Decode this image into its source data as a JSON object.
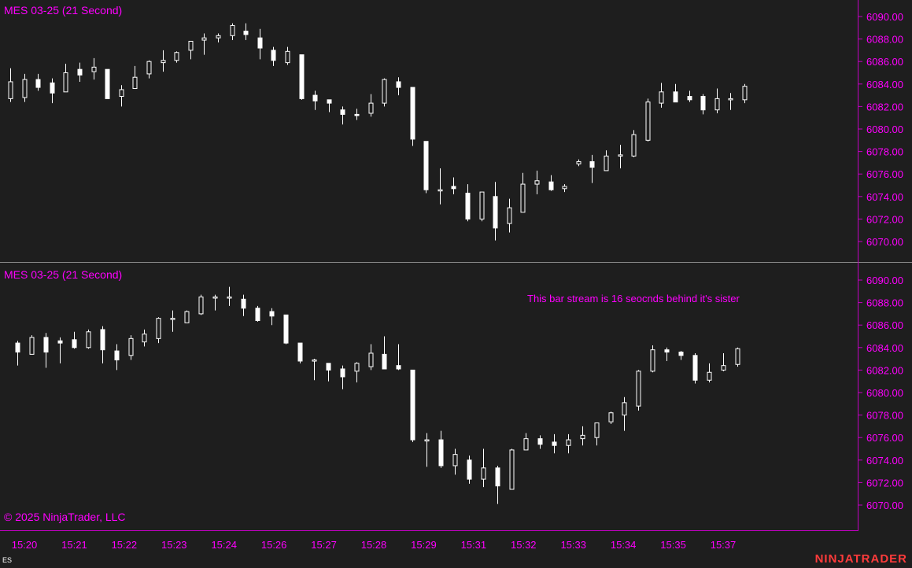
{
  "top_panel": {
    "title": "MES 03-25 (21 Second)"
  },
  "bottom_panel": {
    "title": "MES 03-25 (21 Second)",
    "annotation": "This bar stream is 16 seocnds behind it's sister"
  },
  "footer": {
    "copyright": "© 2025 NinjaTrader, LLC",
    "instrument": "ES",
    "brand": "NINJATRADER"
  },
  "colors": {
    "background": "#1e1e1e",
    "axis_text": "#ff00ff",
    "axis_line": "#c000c0",
    "candle": "#ffffff",
    "brand": "#ff3b3b"
  },
  "chart_data": [
    {
      "type": "candlestick",
      "title": "MES 03-25 (21 Second)",
      "ylim": [
        6069,
        6091
      ],
      "y_ticks": [
        "6070.00",
        "6072.00",
        "6074.00",
        "6076.00",
        "6078.00",
        "6080.00",
        "6082.00",
        "6084.00",
        "6086.00",
        "6088.00",
        "6090.00"
      ],
      "x_tick_labels": [
        "15:20",
        "15:21",
        "15:22",
        "15:23",
        "15:24",
        "15:26",
        "15:27",
        "15:28",
        "15:29",
        "15:31",
        "15:32",
        "15:33",
        "15:34",
        "15:35",
        "15:37"
      ],
      "candles": [
        {
          "o": 6082.7,
          "h": 6085.4,
          "l": 6082.4,
          "c": 6084.2
        },
        {
          "o": 6082.8,
          "h": 6084.9,
          "l": 6082.4,
          "c": 6084.4
        },
        {
          "o": 6084.4,
          "h": 6084.9,
          "l": 6083.4,
          "c": 6083.7
        },
        {
          "o": 6084.1,
          "h": 6084.5,
          "l": 6082.3,
          "c": 6083.2
        },
        {
          "o": 6083.3,
          "h": 6085.8,
          "l": 6083.3,
          "c": 6085.0
        },
        {
          "o": 6085.3,
          "h": 6085.9,
          "l": 6084.2,
          "c": 6084.8
        },
        {
          "o": 6085.1,
          "h": 6086.3,
          "l": 6084.4,
          "c": 6085.5
        },
        {
          "o": 6085.3,
          "h": 6085.3,
          "l": 6082.7,
          "c": 6082.7
        },
        {
          "o": 6082.9,
          "h": 6083.9,
          "l": 6082.0,
          "c": 6083.5
        },
        {
          "o": 6083.6,
          "h": 6085.6,
          "l": 6083.6,
          "c": 6084.6
        },
        {
          "o": 6084.9,
          "h": 6086.1,
          "l": 6084.5,
          "c": 6086.0
        },
        {
          "o": 6085.9,
          "h": 6087.0,
          "l": 6085.1,
          "c": 6086.1
        },
        {
          "o": 6086.1,
          "h": 6086.9,
          "l": 6085.9,
          "c": 6086.8
        },
        {
          "o": 6087.0,
          "h": 6087.8,
          "l": 6086.2,
          "c": 6087.8
        },
        {
          "o": 6087.9,
          "h": 6088.5,
          "l": 6086.6,
          "c": 6088.1
        },
        {
          "o": 6088.1,
          "h": 6088.5,
          "l": 6087.7,
          "c": 6088.3
        },
        {
          "o": 6088.3,
          "h": 6089.4,
          "l": 6087.9,
          "c": 6089.2
        },
        {
          "o": 6088.7,
          "h": 6089.4,
          "l": 6087.9,
          "c": 6088.4
        },
        {
          "o": 6088.1,
          "h": 6088.9,
          "l": 6086.2,
          "c": 6087.2
        },
        {
          "o": 6087.0,
          "h": 6087.3,
          "l": 6085.6,
          "c": 6086.1
        },
        {
          "o": 6085.9,
          "h": 6087.3,
          "l": 6085.7,
          "c": 6086.9
        },
        {
          "o": 6086.6,
          "h": 6086.6,
          "l": 6082.6,
          "c": 6082.7
        },
        {
          "o": 6083.0,
          "h": 6083.4,
          "l": 6081.7,
          "c": 6082.5
        },
        {
          "o": 6082.6,
          "h": 6082.6,
          "l": 6081.5,
          "c": 6082.3
        },
        {
          "o": 6081.7,
          "h": 6082.0,
          "l": 6080.4,
          "c": 6081.3
        },
        {
          "o": 6081.3,
          "h": 6081.8,
          "l": 6080.8,
          "c": 6081.2
        },
        {
          "o": 6081.4,
          "h": 6083.1,
          "l": 6081.1,
          "c": 6082.3
        },
        {
          "o": 6082.3,
          "h": 6084.5,
          "l": 6082.0,
          "c": 6084.4
        },
        {
          "o": 6084.2,
          "h": 6084.6,
          "l": 6083.0,
          "c": 6083.7
        },
        {
          "o": 6083.7,
          "h": 6083.7,
          "l": 6078.5,
          "c": 6079.1
        },
        {
          "o": 6078.9,
          "h": 6078.9,
          "l": 6074.3,
          "c": 6074.6
        },
        {
          "o": 6074.6,
          "h": 6076.5,
          "l": 6073.3,
          "c": 6074.6
        },
        {
          "o": 6074.9,
          "h": 6075.7,
          "l": 6074.2,
          "c": 6074.7
        },
        {
          "o": 6074.3,
          "h": 6075.1,
          "l": 6071.8,
          "c": 6072.0
        },
        {
          "o": 6072.0,
          "h": 6074.4,
          "l": 6071.8,
          "c": 6074.4
        },
        {
          "o": 6074.0,
          "h": 6075.3,
          "l": 6070.1,
          "c": 6071.2
        },
        {
          "o": 6071.6,
          "h": 6073.8,
          "l": 6070.8,
          "c": 6073.0
        },
        {
          "o": 6072.6,
          "h": 6076.1,
          "l": 6072.6,
          "c": 6075.1
        },
        {
          "o": 6075.1,
          "h": 6076.3,
          "l": 6074.2,
          "c": 6075.4
        },
        {
          "o": 6075.3,
          "h": 6075.9,
          "l": 6074.5,
          "c": 6074.6
        },
        {
          "o": 6074.7,
          "h": 6075.1,
          "l": 6074.4,
          "c": 6074.9
        },
        {
          "o": 6076.9,
          "h": 6077.3,
          "l": 6076.7,
          "c": 6077.1
        },
        {
          "o": 6077.1,
          "h": 6077.7,
          "l": 6075.2,
          "c": 6076.6
        },
        {
          "o": 6076.3,
          "h": 6078.1,
          "l": 6076.3,
          "c": 6077.6
        },
        {
          "o": 6077.6,
          "h": 6078.6,
          "l": 6076.5,
          "c": 6077.7
        },
        {
          "o": 6077.6,
          "h": 6079.9,
          "l": 6077.5,
          "c": 6079.5
        },
        {
          "o": 6079.0,
          "h": 6082.7,
          "l": 6078.9,
          "c": 6082.4
        },
        {
          "o": 6082.3,
          "h": 6084.1,
          "l": 6081.9,
          "c": 6083.3
        },
        {
          "o": 6083.3,
          "h": 6084.0,
          "l": 6082.4,
          "c": 6082.4
        },
        {
          "o": 6082.9,
          "h": 6083.4,
          "l": 6082.4,
          "c": 6082.6
        },
        {
          "o": 6082.9,
          "h": 6083.1,
          "l": 6081.3,
          "c": 6081.7
        },
        {
          "o": 6081.7,
          "h": 6083.6,
          "l": 6081.4,
          "c": 6082.7
        },
        {
          "o": 6082.6,
          "h": 6083.2,
          "l": 6081.7,
          "c": 6082.7
        },
        {
          "o": 6082.6,
          "h": 6084.0,
          "l": 6082.3,
          "c": 6083.8
        }
      ]
    },
    {
      "type": "candlestick",
      "title": "MES 03-25 (21 Second)",
      "annotation": "This bar stream is 16 seocnds behind it's sister",
      "ylim": [
        6069,
        6091
      ],
      "y_ticks": [
        "6070.00",
        "6072.00",
        "6074.00",
        "6076.00",
        "6078.00",
        "6080.00",
        "6082.00",
        "6084.00",
        "6086.00",
        "6088.00",
        "6090.00"
      ],
      "x_tick_labels": [
        "15:20",
        "15:21",
        "15:22",
        "15:23",
        "15:24",
        "15:26",
        "15:27",
        "15:28",
        "15:29",
        "15:31",
        "15:32",
        "15:33",
        "15:34",
        "15:35",
        "15:37"
      ],
      "candles": [
        {
          "o": 6084.4,
          "h": 6084.6,
          "l": 6082.4,
          "c": 6083.6
        },
        {
          "o": 6083.4,
          "h": 6085.1,
          "l": 6083.4,
          "c": 6084.9
        },
        {
          "o": 6084.9,
          "h": 6085.3,
          "l": 6082.2,
          "c": 6083.6
        },
        {
          "o": 6084.6,
          "h": 6084.9,
          "l": 6082.6,
          "c": 6084.4
        },
        {
          "o": 6084.7,
          "h": 6085.4,
          "l": 6083.9,
          "c": 6084.0
        },
        {
          "o": 6084.0,
          "h": 6085.6,
          "l": 6083.9,
          "c": 6085.4
        },
        {
          "o": 6085.6,
          "h": 6085.9,
          "l": 6082.6,
          "c": 6083.8
        },
        {
          "o": 6083.7,
          "h": 6084.3,
          "l": 6082.0,
          "c": 6082.9
        },
        {
          "o": 6083.3,
          "h": 6085.1,
          "l": 6082.9,
          "c": 6084.8
        },
        {
          "o": 6084.5,
          "h": 6085.6,
          "l": 6084.1,
          "c": 6085.2
        },
        {
          "o": 6084.8,
          "h": 6086.7,
          "l": 6084.4,
          "c": 6086.6
        },
        {
          "o": 6086.5,
          "h": 6087.3,
          "l": 6085.4,
          "c": 6086.6
        },
        {
          "o": 6086.2,
          "h": 6087.3,
          "l": 6086.2,
          "c": 6087.2
        },
        {
          "o": 6087.0,
          "h": 6088.7,
          "l": 6086.9,
          "c": 6088.5
        },
        {
          "o": 6088.4,
          "h": 6088.7,
          "l": 6087.3,
          "c": 6088.5
        },
        {
          "o": 6088.5,
          "h": 6089.4,
          "l": 6087.7,
          "c": 6088.5
        },
        {
          "o": 6088.3,
          "h": 6088.7,
          "l": 6086.8,
          "c": 6087.5
        },
        {
          "o": 6087.5,
          "h": 6087.7,
          "l": 6086.3,
          "c": 6086.4
        },
        {
          "o": 6087.2,
          "h": 6087.5,
          "l": 6086.0,
          "c": 6086.8
        },
        {
          "o": 6086.9,
          "h": 6086.9,
          "l": 6084.3,
          "c": 6084.4
        },
        {
          "o": 6084.4,
          "h": 6084.4,
          "l": 6082.6,
          "c": 6082.8
        },
        {
          "o": 6082.9,
          "h": 6083.0,
          "l": 6081.1,
          "c": 6082.9
        },
        {
          "o": 6082.6,
          "h": 6082.6,
          "l": 6081.0,
          "c": 6082.0
        },
        {
          "o": 6082.1,
          "h": 6082.4,
          "l": 6080.3,
          "c": 6081.4
        },
        {
          "o": 6081.9,
          "h": 6082.7,
          "l": 6080.9,
          "c": 6082.6
        },
        {
          "o": 6082.3,
          "h": 6084.3,
          "l": 6082.0,
          "c": 6083.5
        },
        {
          "o": 6083.4,
          "h": 6085.0,
          "l": 6082.1,
          "c": 6082.1
        },
        {
          "o": 6082.4,
          "h": 6084.3,
          "l": 6082.0,
          "c": 6082.1
        },
        {
          "o": 6082.0,
          "h": 6082.0,
          "l": 6075.6,
          "c": 6075.8
        },
        {
          "o": 6075.8,
          "h": 6076.4,
          "l": 6073.4,
          "c": 6075.8
        },
        {
          "o": 6075.8,
          "h": 6076.6,
          "l": 6073.3,
          "c": 6073.5
        },
        {
          "o": 6073.5,
          "h": 6075.0,
          "l": 6072.7,
          "c": 6074.5
        },
        {
          "o": 6074.0,
          "h": 6074.4,
          "l": 6071.9,
          "c": 6072.3
        },
        {
          "o": 6072.3,
          "h": 6075.0,
          "l": 6071.6,
          "c": 6073.3
        },
        {
          "o": 6073.3,
          "h": 6073.5,
          "l": 6070.1,
          "c": 6071.7
        },
        {
          "o": 6071.4,
          "h": 6075.0,
          "l": 6071.4,
          "c": 6074.9
        },
        {
          "o": 6074.9,
          "h": 6076.4,
          "l": 6074.9,
          "c": 6075.9
        },
        {
          "o": 6075.9,
          "h": 6076.2,
          "l": 6075.0,
          "c": 6075.4
        },
        {
          "o": 6075.6,
          "h": 6076.3,
          "l": 6074.6,
          "c": 6075.3
        },
        {
          "o": 6075.3,
          "h": 6076.3,
          "l": 6074.6,
          "c": 6075.8
        },
        {
          "o": 6075.9,
          "h": 6077.0,
          "l": 6075.3,
          "c": 6076.2
        },
        {
          "o": 6076.0,
          "h": 6077.1,
          "l": 6075.3,
          "c": 6077.3
        },
        {
          "o": 6077.4,
          "h": 6078.3,
          "l": 6077.2,
          "c": 6078.2
        },
        {
          "o": 6078.0,
          "h": 6079.6,
          "l": 6076.6,
          "c": 6079.1
        },
        {
          "o": 6078.8,
          "h": 6082.0,
          "l": 6078.4,
          "c": 6081.9
        },
        {
          "o": 6081.9,
          "h": 6084.2,
          "l": 6081.8,
          "c": 6083.8
        },
        {
          "o": 6083.8,
          "h": 6084.0,
          "l": 6082.8,
          "c": 6083.6
        },
        {
          "o": 6083.6,
          "h": 6083.7,
          "l": 6082.9,
          "c": 6083.3
        },
        {
          "o": 6083.3,
          "h": 6083.5,
          "l": 6080.8,
          "c": 6081.1
        },
        {
          "o": 6081.1,
          "h": 6082.6,
          "l": 6080.9,
          "c": 6081.8
        },
        {
          "o": 6082.0,
          "h": 6083.5,
          "l": 6081.9,
          "c": 6082.4
        },
        {
          "o": 6082.5,
          "h": 6084.0,
          "l": 6082.3,
          "c": 6083.9
        }
      ]
    }
  ]
}
